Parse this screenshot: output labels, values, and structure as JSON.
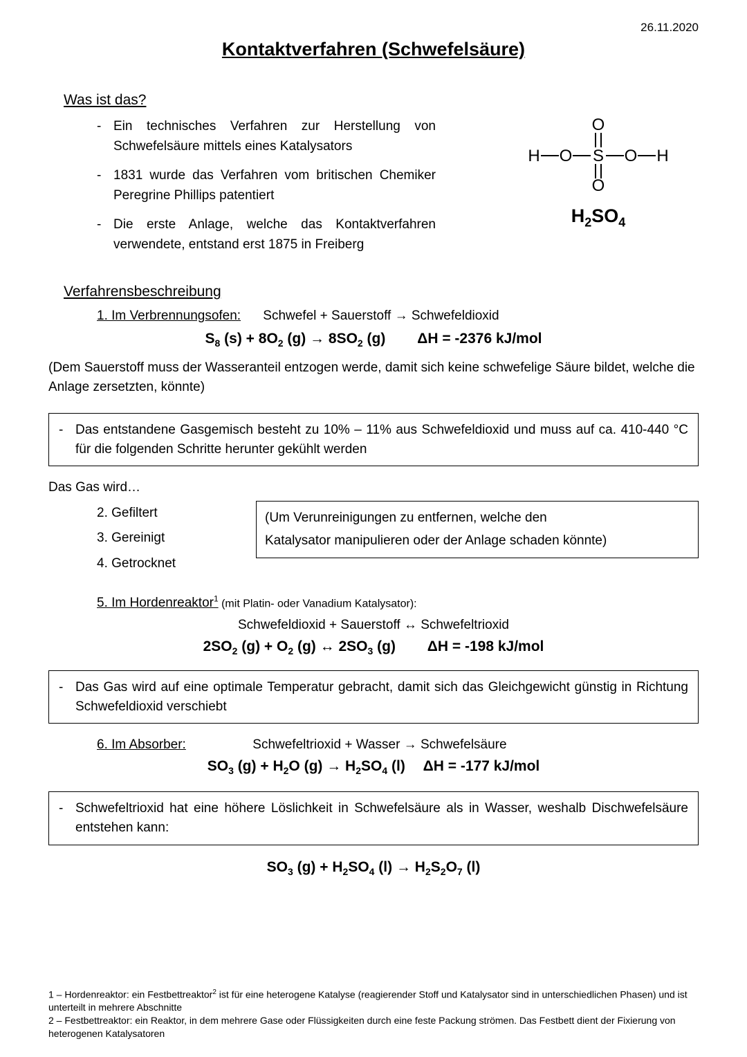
{
  "date": "26.11.2020",
  "title": "Kontaktverfahren (Schwefelsäure)",
  "section1": {
    "heading": "Was ist das?",
    "bullets": [
      "Ein technisches Verfahren zur Herstellung von Schwefelsäure mittels eines Katalysators",
      "1831 wurde das Verfahren vom britischen Chemiker Peregrine Phillips patentiert",
      "Die erste Anlage, welche das Kontaktverfahren verwendete, entstand erst 1875 in Freiberg"
    ]
  },
  "structure_label_html": "H<sub>2</sub>SO<sub>4</sub>",
  "section2": {
    "heading": "Verfahrensbeschreibung",
    "step1_label": "1. Im Verbrennungsofen:",
    "step1_word_eq": "Schwefel + Sauerstoff → Schwefeldioxid",
    "eq1_html": "S<sub>8</sub> (s) + 8O<sub>2</sub> (g) → 8SO<sub>2</sub> (g)",
    "dh1": "ΔH = -2376 kJ/mol",
    "oxygen_note": "(Dem Sauerstoff muss der Wasseranteil entzogen werde, damit sich keine schwefelige Säure bildet, welche die Anlage zersetzten, könnte)",
    "box1": "Das entstandene Gasgemisch besteht zu 10% – 11% aus Schwefeldioxid und muss auf ca. 410-440 °C für die folgenden Schritte herunter gekühlt werden",
    "gas_wird": "Das Gas wird…",
    "steps234": [
      "2. Gefiltert",
      "3. Gereinigt",
      "4. Getrocknet"
    ],
    "gas_box_line1": "(Um Verunreinigungen zu entfernen, welche den",
    "gas_box_line2": "Katalysator manipulieren oder der Anlage schaden könnte)",
    "step5_prefix": "5. Im Hordenreaktor",
    "step5_sup": "1",
    "step5_suffix": " (mit Platin- oder Vanadium Katalysator):",
    "step5_word_eq": "Schwefeldioxid + Sauerstoff ↔ Schwefeltrioxid",
    "eq2_html": "2SO<sub>2</sub> (g) + O<sub>2</sub> (g) ↔ 2SO<sub>3</sub> (g)",
    "dh2": "ΔH = -198 kJ/mol",
    "box2": "Das Gas wird auf eine optimale Temperatur gebracht, damit sich das Gleichgewicht günstig in Richtung Schwefeldioxid verschiebt",
    "step6_label": "6. Im Absorber:",
    "step6_word_eq": "Schwefeltrioxid + Wasser → Schwefelsäure",
    "eq3_html": "SO<sub>3</sub> (g) + H<sub>2</sub>O (g) → H<sub>2</sub>SO<sub>4</sub> (l)",
    "dh3": "ΔH = -177 kJ/mol",
    "box3": "Schwefeltrioxid hat eine höhere Löslichkeit in Schwefelsäure als in Wasser, weshalb Dischwefelsäure entstehen kann:",
    "eq4_html": "SO<sub>3</sub> (g) + H<sub>2</sub>SO<sub>4</sub> (l) → H<sub>2</sub>S<sub>2</sub>O<sub>7</sub> (l)"
  },
  "footnotes": {
    "f1_html": "1 – Hordenreaktor: ein Festbettreaktor<sup>2</sup> ist für eine heterogene Katalyse (reagierender Stoff und Katalysator sind in unterschiedlichen Phasen) und ist unterteilt in mehrere Abschnitte",
    "f2": "2 – Festbettreaktor: ein Reaktor, in dem mehrere Gase oder Flüssigkeiten durch eine feste Packung strömen. Das Festbett dient der Fixierung von heterogenen Katalysatoren"
  },
  "colors": {
    "text": "#000000",
    "background": "#ffffff",
    "border": "#000000"
  },
  "fonts": {
    "body_family": "Arial",
    "title_size_pt": 20,
    "body_size_pt": 14,
    "footnote_size_pt": 10
  }
}
